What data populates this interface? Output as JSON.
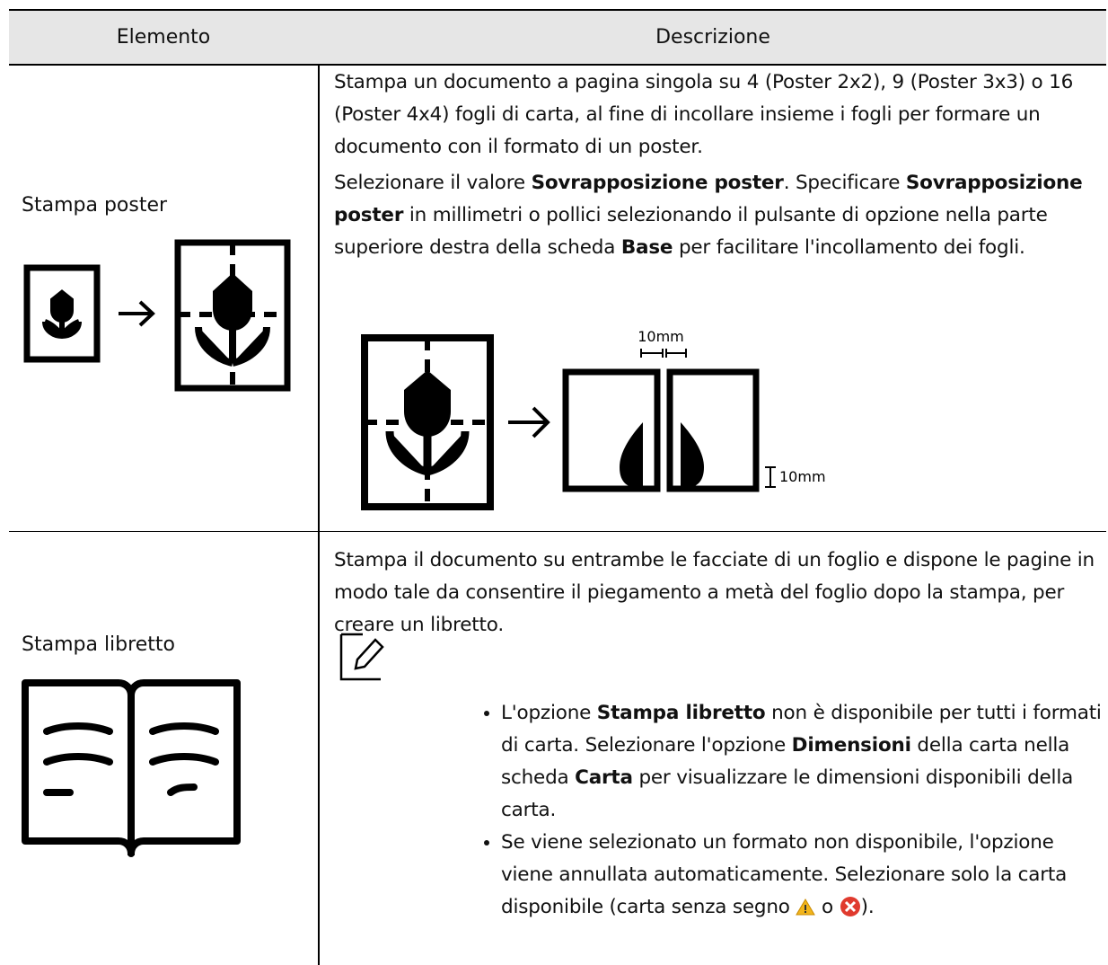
{
  "table": {
    "header": [
      "Elemento",
      "Descrizione"
    ],
    "rows": [
      {
        "label": "Stampa poster",
        "description": [
          [
            "Stampa un documento a pagina singola su 4 (Poster 2x2), 9 (Poster 3x3) o 16 (Poster 4x4) fogli di carta, al fine di incollare insieme i fogli per formare un documento con il formato di un poster."
          ],
          [
            "Selezionare il valore ",
            "Sovrapposizione poster",
            ". Specificare ",
            "Sovrapposizione poster",
            " in millimetri o pollici selezionando il pulsante di opzione nella parte superiore destra della scheda ",
            "Base",
            " per facilitare l'incollamento dei fogli."
          ]
        ],
        "figure_labels": [
          "10mm",
          "10mm"
        ]
      },
      {
        "label": "Stampa libretto",
        "description": [
          [
            "Stampa il documento su entrambe le facciate di un foglio e dispone le pagine in modo tale da consentire il piegamento a metà del foglio dopo la stampa, per creare un libretto."
          ]
        ],
        "notes": [
          [
            "L'opzione ",
            "Stampa libretto",
            " non è disponibile per tutti i formati di carta. Selezionare l'opzione ",
            "Dimensioni",
            " della carta nella scheda ",
            "Carta",
            " per visualizzare le dimensioni disponibili della carta."
          ],
          [
            "Se viene selezionato un formato non disponibile, l'opzione viene annullata automaticamente. Selezionare solo la carta disponibile (carta senza segno ",
            " o ",
            ")."
          ]
        ]
      }
    ]
  }
}
